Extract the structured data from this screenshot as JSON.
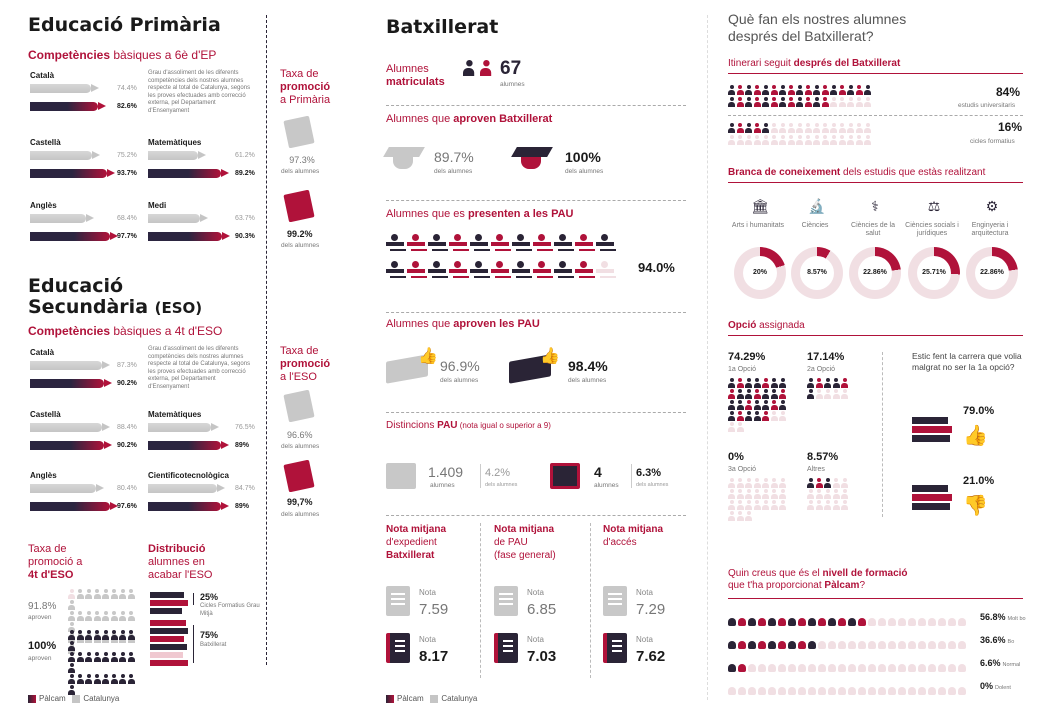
{
  "primaria": {
    "title": "Educació Primària",
    "subtitle_bold": "Competències",
    "subtitle_rest": " bàsiques a 6è d'EP",
    "description": "Grau d'assoliment de les diferents competències dels nostres alumnes respecte al total de Catalunya, segons les proves efectuades amb correcció externa, pel Departament d'Ensenyament",
    "subjects": [
      {
        "name": "Català",
        "catalunya": "74.4%",
        "palcam": "82.6%",
        "cat_frac": 0.744,
        "pal_frac": 0.826
      },
      {
        "name": "Castellà",
        "catalunya": "75.2%",
        "palcam": "93.7%",
        "cat_frac": 0.752,
        "pal_frac": 0.937
      },
      {
        "name": "Matemàtiques",
        "catalunya": "61.2%",
        "palcam": "89.2%",
        "cat_frac": 0.612,
        "pal_frac": 0.892
      },
      {
        "name": "Anglès",
        "catalunya": "68.4%",
        "palcam": "97.7%",
        "cat_frac": 0.684,
        "pal_frac": 0.977
      },
      {
        "name": "Medi",
        "catalunya": "63.7%",
        "palcam": "90.3%",
        "cat_frac": 0.637,
        "pal_frac": 0.903
      }
    ],
    "promo_title_1": "Taxa de",
    "promo_title_2": "promoció",
    "promo_title_3": "a Primària",
    "promo_cat": "97.3%",
    "promo_cat_sub": "dels alumnes",
    "promo_pal": "99.2%",
    "promo_pal_sub": "dels alumnes"
  },
  "eso": {
    "title_1": "Educació",
    "title_2": "Secundària",
    "title_small": "(ESO)",
    "subtitle_bold": "Competències",
    "subtitle_rest": " bàsiques a 4t d'ESO",
    "description": "Grau d'assoliment de les diferents competències dels nostres alumnes respecte al total de Catalunya, segons les proves efectuades amb correcció externa, pel Departament d'Ensenyament",
    "subjects": [
      {
        "name": "Català",
        "catalunya": "87.3%",
        "palcam": "90.2%",
        "cat_frac": 0.873,
        "pal_frac": 0.902
      },
      {
        "name": "Castellà",
        "catalunya": "88.4%",
        "palcam": "90.2%",
        "cat_frac": 0.884,
        "pal_frac": 0.902
      },
      {
        "name": "Matemàtiques",
        "catalunya": "76.5%",
        "palcam": "89%",
        "cat_frac": 0.765,
        "pal_frac": 0.89
      },
      {
        "name": "Anglès",
        "catalunya": "80.4%",
        "palcam": "97.6%",
        "cat_frac": 0.804,
        "pal_frac": 0.976
      },
      {
        "name": "Cientificotecnològica",
        "catalunya": "84.7%",
        "palcam": "89%",
        "cat_frac": 0.847,
        "pal_frac": 0.89
      }
    ],
    "promo_title_1": "Taxa de",
    "promo_title_2": "promoció",
    "promo_title_3": "a l'ESO",
    "promo_cat": "96.6%",
    "promo_cat_sub": "dels alumnes",
    "promo_pal": "99,7%",
    "promo_pal_sub": "dels alumnes",
    "taxa_1": "Taxa de",
    "taxa_2": "promoció a",
    "taxa_3": "4t d'ESO",
    "taxa_cat": "91.8%",
    "taxa_cat_sub": "aproven",
    "taxa_pal": "100%",
    "taxa_pal_sub": "aproven",
    "dist_1": "Distribució",
    "dist_2": "alumnes en",
    "dist_3": "acabar l'ESO",
    "dist_a_pct": "25%",
    "dist_a_label": "Cicles Formatius Grau Mitjà",
    "dist_b_pct": "75%",
    "dist_b_label": "Batxillerat"
  },
  "legend": {
    "palcam": "Pàlcam",
    "catalunya": "Catalunya"
  },
  "batx": {
    "title": "Batxillerat",
    "matric_label_1": "Alumnes",
    "matric_label_2": "matriculats",
    "matric_value": "67",
    "matric_unit": "alumnes",
    "aproven_label_1": "Alumnes que ",
    "aproven_label_2": "aproven Batxillerat",
    "aproven_cat": "89.7%",
    "aproven_cat_sub": "dels alumnes",
    "aproven_pal": "100%",
    "aproven_pal_sub": "dels alumnes",
    "pau_label_1": "Alumnes que es ",
    "pau_label_2": "presenten a les PAU",
    "pau_value": "94.0%",
    "apau_label_1": "Alumnes que ",
    "apau_label_2": "aproven les PAU",
    "apau_cat": "96.9%",
    "apau_cat_sub": "dels alumnes",
    "apau_pal": "98.4%",
    "apau_pal_sub": "dels alumnes",
    "dist_label_1": "Distincions ",
    "dist_label_2": "PAU",
    "dist_label_3": " (nota igual o superior a 9)",
    "dist_cat_n": "1.409",
    "dist_cat_unit": "alumnes",
    "dist_cat_pct": "4.2%",
    "dist_cat_pct_sub": "dels alumnes",
    "dist_pal_n": "4",
    "dist_pal_unit": "alumnes",
    "dist_pal_pct": "6.3%",
    "dist_pal_pct_sub": "dels alumnes",
    "notes": [
      {
        "t1": "Nota mitjana",
        "t2": "d'expedient",
        "t3": "Batxillerat",
        "lbl": "Nota",
        "cat": "7.59",
        "pal": "8.17"
      },
      {
        "t1": "Nota mitjana",
        "t2": "de PAU",
        "t3": "(fase general)",
        "lbl": "Nota",
        "cat": "6.85",
        "pal": "7.03"
      },
      {
        "t1": "Nota mitjana",
        "t2": "d'accés",
        "t3": "",
        "lbl": "Nota",
        "cat": "7.29",
        "pal": "7.62"
      }
    ]
  },
  "despres": {
    "title_1": "Què fan els nostres alumnes",
    "title_2": "després del Batxillerat?",
    "itin_1": "Itinerari seguit ",
    "itin_2": "després del Batxillerat",
    "univ_pct": "84%",
    "univ_label": "estudis universitaris",
    "cicles_pct": "16%",
    "cicles_label": "cicles formatius",
    "branca_1": "Branca de coneixement",
    "branca_2": " dels estudis que estàs realitzant",
    "branques": [
      {
        "name": "Arts i humanitats",
        "value": "20%",
        "frac": 0.2
      },
      {
        "name": "Ciències",
        "value": "8.57%",
        "frac": 0.0857
      },
      {
        "name": "Ciències de la salut",
        "value": "22.86%",
        "frac": 0.2286
      },
      {
        "name": "Ciències socials i jurídiques",
        "value": "25.71%",
        "frac": 0.2571
      },
      {
        "name": "Enginyeria i arquitectura",
        "value": "22.86%",
        "frac": 0.2286
      }
    ],
    "opcio_1": "Opció",
    "opcio_2": " assignada",
    "opcions": [
      {
        "value": "74.29%",
        "label": "1a Opció"
      },
      {
        "value": "17.14%",
        "label": "2a Opció"
      },
      {
        "value": "0%",
        "label": "3a Opció"
      },
      {
        "value": "8.57%",
        "label": "Altres"
      }
    ],
    "question": "Estic fent la carrera que volia malgrat no ser la 1a opció?",
    "yes_pct": "79.0%",
    "no_pct": "21.0%",
    "nivell_1": "Quin creus que és el ",
    "nivell_2": "nivell de formació",
    "nivell_3": "que t'ha proporcionat ",
    "nivell_4": "Pàlcam",
    "nivell_5": "?",
    "nivells": [
      {
        "pct": "56.8%",
        "label": "Molt bo",
        "frac": 0.568
      },
      {
        "pct": "36.6%",
        "label": "Bo",
        "frac": 0.366
      },
      {
        "pct": "6.6%",
        "label": "Normal",
        "frac": 0.066
      },
      {
        "pct": "0%",
        "label": "Dolent",
        "frac": 0
      }
    ]
  },
  "colors": {
    "palcam": "#b0123a",
    "dark": "#2a2436",
    "catalunya": "#c5c5c5",
    "light": "#f1dfe3"
  }
}
